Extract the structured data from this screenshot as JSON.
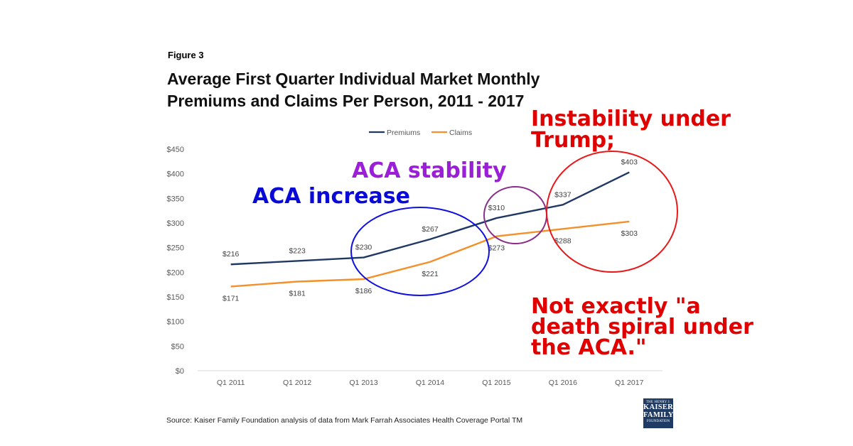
{
  "figure_label": "Figure 3",
  "title_lines": [
    "Average First Quarter Individual Market Monthly",
    "Premiums and Claims Per Person, 2011 - 2017"
  ],
  "source": "Source: Kaiser Family Foundation  analysis of data from Mark Farrah Associates Health Coverage Portal TM",
  "logo": {
    "top": "THE HENRY J.",
    "line1": "KAISER",
    "line2": "FAMILY",
    "bottom": "FOUNDATION"
  },
  "annotations": {
    "instability": [
      "Instability under",
      "Trump;"
    ],
    "aca_stability": "ACA stability",
    "aca_increase": "ACA increase",
    "death_spiral": [
      "Not exactly \"a",
      "death spiral under",
      "the ACA.\""
    ]
  },
  "colors": {
    "premiums": "#203864",
    "claims": "#f4902a",
    "circle_blue": "#1010e0",
    "circle_purple": "#8a2c8a",
    "circle_red": "#e81818",
    "axis_text": "#595959"
  },
  "chart_data": {
    "type": "line",
    "categories": [
      "Q1 2011",
      "Q1 2012",
      "Q1 2013",
      "Q1 2014",
      "Q1 2015",
      "Q1 2016",
      "Q1 2017"
    ],
    "series": [
      {
        "name": "Premiums",
        "values": [
          216,
          223,
          230,
          267,
          310,
          337,
          403
        ],
        "labels": [
          "$216",
          "$223",
          "$230",
          "$267",
          "$310",
          "$337",
          "$403"
        ]
      },
      {
        "name": "Claims",
        "values": [
          171,
          181,
          186,
          221,
          273,
          288,
          303
        ],
        "labels": [
          "$171",
          "$181",
          "$186",
          "$221",
          "$273",
          "$288",
          "$303"
        ]
      }
    ],
    "y_ticks": [
      "$0",
      "$50",
      "$100",
      "$150",
      "$200",
      "$250",
      "$300",
      "$350",
      "$400",
      "$450"
    ],
    "ylim": [
      0,
      450
    ],
    "grid": false,
    "legend_position": "top-center"
  }
}
